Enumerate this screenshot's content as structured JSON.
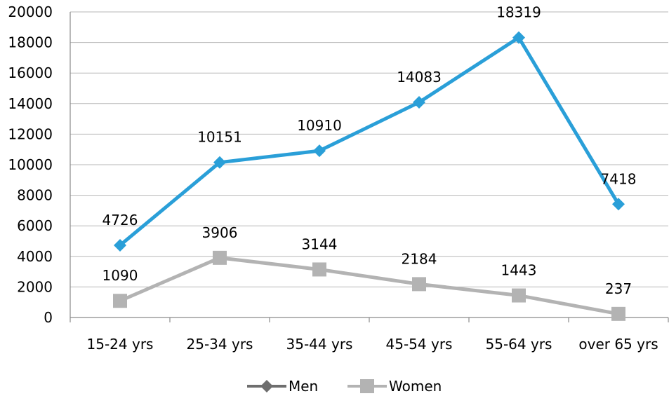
{
  "chart_data": {
    "type": "line",
    "title": "",
    "xlabel": "",
    "ylabel": "",
    "categories": [
      "15-24 yrs",
      "25-34 yrs",
      "35-44 yrs",
      "45-54 yrs",
      "55-64 yrs",
      "over 65 yrs"
    ],
    "ylim": [
      0,
      20000
    ],
    "yticks": [
      "0",
      "2000",
      "4000",
      "6000",
      "8000",
      "10000",
      "12000",
      "14000",
      "16000",
      "18000",
      "20000"
    ],
    "grid": true,
    "legend_position": "bottom",
    "series": [
      {
        "name": "Men",
        "marker": "diamond",
        "color": "#2A9FD8",
        "legend_color": "#6E6E6E",
        "values": [
          4726,
          10151,
          10910,
          14083,
          18319,
          7418
        ],
        "labels": [
          "4726",
          "10151",
          "10910",
          "14083",
          "18319",
          "7418"
        ]
      },
      {
        "name": "Women",
        "marker": "square",
        "color": "#B3B3B3",
        "legend_color": "#B3B3B3",
        "values": [
          1090,
          3906,
          3144,
          2184,
          1443,
          237
        ],
        "labels": [
          "1090",
          "3906",
          "3144",
          "2184",
          "1443",
          "237"
        ]
      }
    ]
  }
}
